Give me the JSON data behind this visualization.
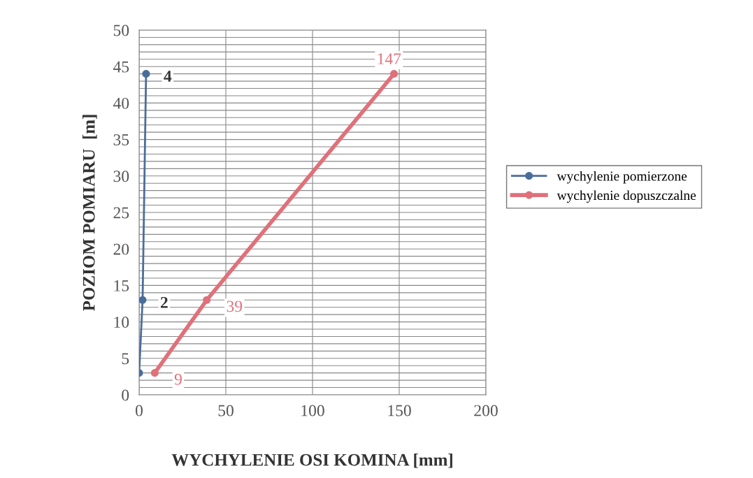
{
  "chart_data": {
    "type": "line",
    "xlabel": "WYCHYLENIE OSI KOMINA [mm]",
    "ylabel": "POZIOM POMIARU  [m]",
    "xlim": [
      0,
      200
    ],
    "xticks": [
      0,
      50,
      100,
      150,
      200
    ],
    "ylim": [
      0,
      50
    ],
    "yticks": [
      0,
      {
        "value": 1,
        "label": null
      },
      {
        "value": 2,
        "label": null
      },
      {
        "value": 3,
        "label": null
      },
      {
        "value": 4,
        "label": null
      },
      5,
      {
        "value": 6,
        "label": null
      },
      {
        "value": 7,
        "label": null
      },
      {
        "value": 8,
        "label": null
      },
      {
        "value": 9,
        "label": null
      },
      10,
      {
        "value": 11,
        "label": null
      },
      {
        "value": 12,
        "label": null
      },
      {
        "value": 13,
        "label": null
      },
      {
        "value": 14,
        "label": null
      },
      15,
      {
        "value": 16,
        "label": null
      },
      {
        "value": 17,
        "label": null
      },
      {
        "value": 18,
        "label": null
      },
      {
        "value": 19,
        "label": null
      },
      20,
      {
        "value": 21,
        "label": null
      },
      {
        "value": 22,
        "label": null
      },
      {
        "value": 23,
        "label": null
      },
      {
        "value": 24,
        "label": null
      },
      25,
      {
        "value": 26,
        "label": null
      },
      {
        "value": 27,
        "label": null
      },
      {
        "value": 28,
        "label": null
      },
      {
        "value": 29,
        "label": null
      },
      30,
      {
        "value": 31,
        "label": null
      },
      {
        "value": 32,
        "label": null
      },
      {
        "value": 33,
        "label": null
      },
      {
        "value": 34,
        "label": null
      },
      35,
      {
        "value": 36,
        "label": null
      },
      {
        "value": 37,
        "label": null
      },
      {
        "value": 38,
        "label": null
      },
      {
        "value": 39,
        "label": null
      },
      40,
      {
        "value": 41,
        "label": null
      },
      {
        "value": 42,
        "label": null
      },
      {
        "value": 43,
        "label": null
      },
      {
        "value": 44,
        "label": null
      },
      45,
      {
        "value": 46,
        "label": null
      },
      {
        "value": 47,
        "label": null
      },
      {
        "value": 48,
        "label": null
      },
      {
        "value": 49,
        "label": null
      },
      50
    ],
    "grid": true,
    "legend": "right",
    "marker": "circle",
    "orientation": "horizontal",
    "series": [
      {
        "name": "wychylenie pomierzone",
        "color": "#4a6d9c",
        "x": [
          3,
          13,
          44
        ],
        "values": [
          0,
          2,
          4
        ],
        "value_labels": [
          null,
          "2",
          "4"
        ]
      },
      {
        "name": "wychylenie dopuszczalne",
        "color": "#e0707a",
        "x": [
          3,
          13,
          44
        ],
        "values": [
          9,
          39,
          147
        ],
        "value_labels": [
          "9",
          "39",
          "147"
        ]
      }
    ]
  }
}
